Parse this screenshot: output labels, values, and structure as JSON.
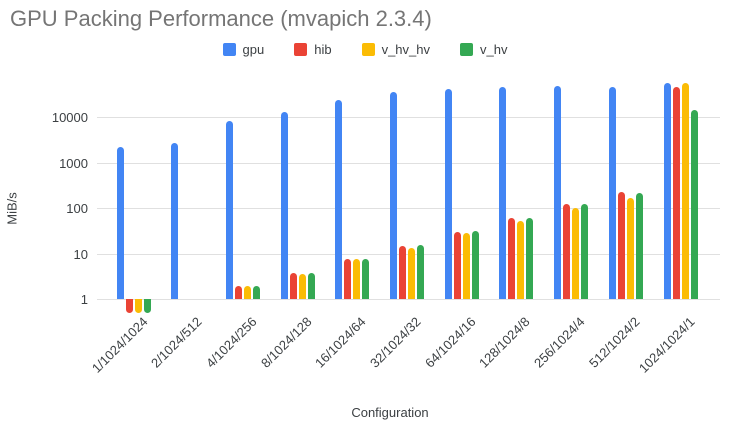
{
  "title": "GPU Packing Performance (mvapich 2.3.4)",
  "chart_data": {
    "type": "bar",
    "title": "GPU Packing Performance (mvapich 2.3.4)",
    "xlabel": "Configuration",
    "ylabel": "MiB/s",
    "y_scale": "log",
    "y_ticks": [
      1,
      10,
      100,
      1000,
      10000
    ],
    "ylim": [
      0.45,
      62000
    ],
    "grid": true,
    "legend_position": "top",
    "grid_color": "#e0e0e0",
    "categories": [
      "1/1024/1024",
      "2/1024/512",
      "4/1024/256",
      "8/1024/128",
      "16/1024/64",
      "32/1024/32",
      "64/1024/16",
      "128/1024/8",
      "256/1024/4",
      "512/1024/2",
      "1024/1024/1"
    ],
    "series": [
      {
        "name": "gpu",
        "color": "#4285F4",
        "values": [
          2200,
          2700,
          8000,
          13000,
          24000,
          35000,
          42000,
          45000,
          48000,
          46000,
          55000
        ]
      },
      {
        "name": "hib",
        "color": "#EA4335",
        "values": [
          0.5,
          null,
          1.9,
          3.7,
          7.6,
          14.5,
          30,
          60,
          125,
          230,
          46000
        ]
      },
      {
        "name": "v_hv_hv",
        "color": "#FBBC04",
        "values": [
          0.5,
          null,
          1.9,
          3.6,
          7.5,
          13.5,
          28,
          52,
          100,
          170,
          56000
        ]
      },
      {
        "name": "v_hv",
        "color": "#34A853",
        "values": [
          0.5,
          null,
          1.9,
          3.7,
          7.6,
          15.5,
          31,
          60,
          120,
          215,
          14000
        ]
      }
    ]
  }
}
